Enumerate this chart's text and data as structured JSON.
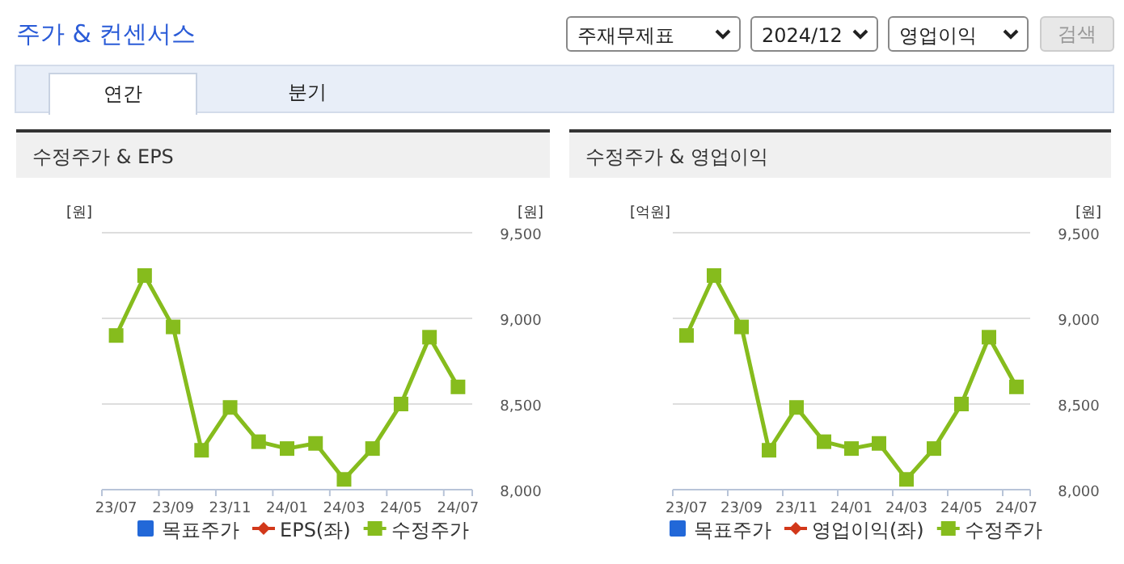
{
  "chart_data": [
    {
      "type": "other",
      "title": "주가 & 컨센서스",
      "annotations": [
        "주재무제표",
        "2024/12",
        "영업이익",
        "검색",
        "연간",
        "분기"
      ]
    },
    {
      "type": "line",
      "title": "수정주가 & EPS",
      "ylabel": "[원]",
      "y2label": "[원]",
      "categories": [
        "23/07",
        null,
        "23/09",
        null,
        "23/11",
        null,
        "24/01",
        null,
        "24/03",
        null,
        "24/05",
        null,
        "24/07"
      ],
      "series": [
        {
          "name": "목표주가",
          "type": "bar",
          "color": "#2268d8",
          "values": [
            null,
            null,
            null,
            null,
            null,
            null,
            null,
            null,
            null,
            null,
            null,
            null,
            null
          ]
        },
        {
          "name": "EPS(좌)",
          "type": "line",
          "marker": "diamond",
          "color": "#d2381a",
          "values": [
            null,
            null,
            null,
            null,
            null,
            null,
            null,
            null,
            null,
            null,
            null,
            null,
            null
          ]
        },
        {
          "name": "수정주가",
          "type": "line",
          "marker": "square",
          "axis": "y2",
          "color": "#86bc1d",
          "values": [
            8900,
            9250,
            8950,
            8230,
            8480,
            8280,
            8240,
            8270,
            8060,
            8240,
            8500,
            8890,
            8600
          ]
        }
      ],
      "y2lim": [
        8000,
        9500
      ],
      "y2ticks": [
        {
          "value": 8000,
          "label": "8,000"
        },
        {
          "value": 8500,
          "label": "8,500"
        },
        {
          "value": 9000,
          "label": "9,000"
        },
        {
          "value": 9500,
          "label": "9,500"
        }
      ],
      "grid": "y",
      "legend": "bottom"
    },
    {
      "type": "line",
      "title": "수정주가 & 영업이익",
      "ylabel": "[억원]",
      "y2label": "[원]",
      "categories": [
        "23/07",
        null,
        "23/09",
        null,
        "23/11",
        null,
        "24/01",
        null,
        "24/03",
        null,
        "24/05",
        null,
        "24/07"
      ],
      "series": [
        {
          "name": "목표주가",
          "type": "bar",
          "color": "#2268d8",
          "values": [
            null,
            null,
            null,
            null,
            null,
            null,
            null,
            null,
            null,
            null,
            null,
            null,
            null
          ]
        },
        {
          "name": "영업이익(좌)",
          "type": "line",
          "marker": "diamond",
          "color": "#d2381a",
          "values": [
            null,
            null,
            null,
            null,
            null,
            null,
            null,
            null,
            null,
            null,
            null,
            null,
            null
          ]
        },
        {
          "name": "수정주가",
          "type": "line",
          "marker": "square",
          "axis": "y2",
          "color": "#86bc1d",
          "values": [
            8900,
            9250,
            8950,
            8230,
            8480,
            8280,
            8240,
            8270,
            8060,
            8240,
            8500,
            8890,
            8600
          ]
        }
      ],
      "y2lim": [
        8000,
        9500
      ],
      "y2ticks": [
        {
          "value": 8000,
          "label": "8,000"
        },
        {
          "value": 8500,
          "label": "8,500"
        },
        {
          "value": 9000,
          "label": "9,000"
        },
        {
          "value": 9500,
          "label": "9,500"
        }
      ],
      "grid": "y",
      "legend": "bottom"
    }
  ]
}
